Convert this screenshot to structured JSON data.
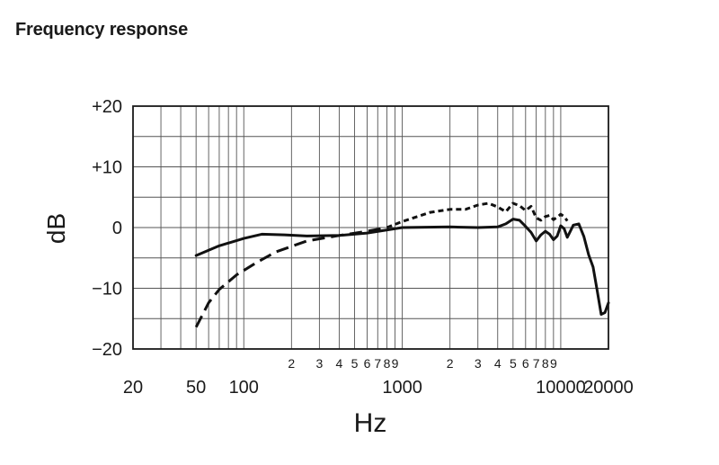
{
  "title": "Frequency response",
  "chart_data": {
    "type": "line",
    "title": "Frequency response",
    "xlabel": "Hz",
    "ylabel": "dB",
    "xscale": "log",
    "xlim": [
      20,
      20000
    ],
    "ylim": [
      -20,
      20
    ],
    "grid": true,
    "y_ticks": [
      {
        "value": 20,
        "label": "+20"
      },
      {
        "value": 10,
        "label": "+10"
      },
      {
        "value": 0,
        "label": "0"
      },
      {
        "value": -10,
        "label": "−10"
      },
      {
        "value": -20,
        "label": "−20"
      }
    ],
    "x_major_ticks": [
      {
        "value": 20,
        "label": "20"
      },
      {
        "value": 50,
        "label": "50"
      },
      {
        "value": 100,
        "label": "100"
      },
      {
        "value": 1000,
        "label": "1000"
      },
      {
        "value": 10000,
        "label": "10000"
      },
      {
        "value": 20000,
        "label": "20000"
      }
    ],
    "x_minor_ticks": [
      {
        "value": 200,
        "label": "2"
      },
      {
        "value": 300,
        "label": "3"
      },
      {
        "value": 400,
        "label": "4"
      },
      {
        "value": 500,
        "label": "5"
      },
      {
        "value": 600,
        "label": "6"
      },
      {
        "value": 700,
        "label": "7"
      },
      {
        "value": 800,
        "label": "8"
      },
      {
        "value": 900,
        "label": "9"
      },
      {
        "value": 2000,
        "label": "2"
      },
      {
        "value": 3000,
        "label": "3"
      },
      {
        "value": 4000,
        "label": "4"
      },
      {
        "value": 5000,
        "label": "5"
      },
      {
        "value": 6000,
        "label": "6"
      },
      {
        "value": 7000,
        "label": "7"
      },
      {
        "value": 8000,
        "label": "8"
      },
      {
        "value": 9000,
        "label": "9"
      }
    ],
    "series": [
      {
        "style": "solid",
        "points": [
          [
            50,
            -4.6
          ],
          [
            70,
            -3
          ],
          [
            100,
            -1.8
          ],
          [
            130,
            -1.1
          ],
          [
            180,
            -1.2
          ],
          [
            250,
            -1.4
          ],
          [
            400,
            -1.3
          ],
          [
            600,
            -0.9
          ],
          [
            1000,
            0
          ],
          [
            2000,
            0.1
          ],
          [
            3000,
            0
          ],
          [
            4000,
            0.1
          ],
          [
            4500,
            0.6
          ],
          [
            5000,
            1.4
          ],
          [
            5500,
            1.2
          ],
          [
            6000,
            0.2
          ],
          [
            6500,
            -0.8
          ],
          [
            7000,
            -2.2
          ],
          [
            7500,
            -1.2
          ],
          [
            8000,
            -0.6
          ],
          [
            8500,
            -1.1
          ],
          [
            9000,
            -2
          ],
          [
            9500,
            -1.4
          ],
          [
            10000,
            0.3
          ],
          [
            10500,
            -0.2
          ],
          [
            11000,
            -1.6
          ],
          [
            11500,
            -0.6
          ],
          [
            12000,
            0.4
          ],
          [
            13000,
            0.6
          ],
          [
            14000,
            -1.5
          ],
          [
            15000,
            -4.5
          ],
          [
            16000,
            -6.5
          ],
          [
            17000,
            -10.5
          ],
          [
            18000,
            -14.3
          ],
          [
            19000,
            -14
          ],
          [
            20000,
            -12.4
          ]
        ]
      },
      {
        "style": "long-dash",
        "points": [
          [
            50,
            -16.4
          ],
          [
            60,
            -12.4
          ],
          [
            70,
            -10.2
          ],
          [
            90,
            -7.8
          ],
          [
            120,
            -5.8
          ],
          [
            160,
            -4
          ],
          [
            250,
            -2.2
          ],
          [
            400,
            -1.3
          ],
          [
            600,
            -0.6
          ],
          [
            800,
            0
          ]
        ]
      },
      {
        "style": "short-dash",
        "points": [
          [
            800,
            0
          ],
          [
            1000,
            1
          ],
          [
            1500,
            2.5
          ],
          [
            2000,
            3
          ],
          [
            2500,
            3
          ],
          [
            3000,
            3.7
          ],
          [
            3500,
            4
          ],
          [
            4000,
            3.4
          ],
          [
            4500,
            2.6
          ],
          [
            5000,
            4
          ],
          [
            5500,
            3.6
          ],
          [
            6000,
            2.8
          ],
          [
            6500,
            3.5
          ],
          [
            7000,
            1.6
          ],
          [
            7500,
            1.2
          ],
          [
            8000,
            1.8
          ],
          [
            8500,
            2
          ],
          [
            9000,
            1.3
          ],
          [
            9500,
            1.7
          ],
          [
            10000,
            2.2
          ],
          [
            10500,
            1.8
          ],
          [
            11000,
            1.1
          ]
        ]
      }
    ]
  }
}
